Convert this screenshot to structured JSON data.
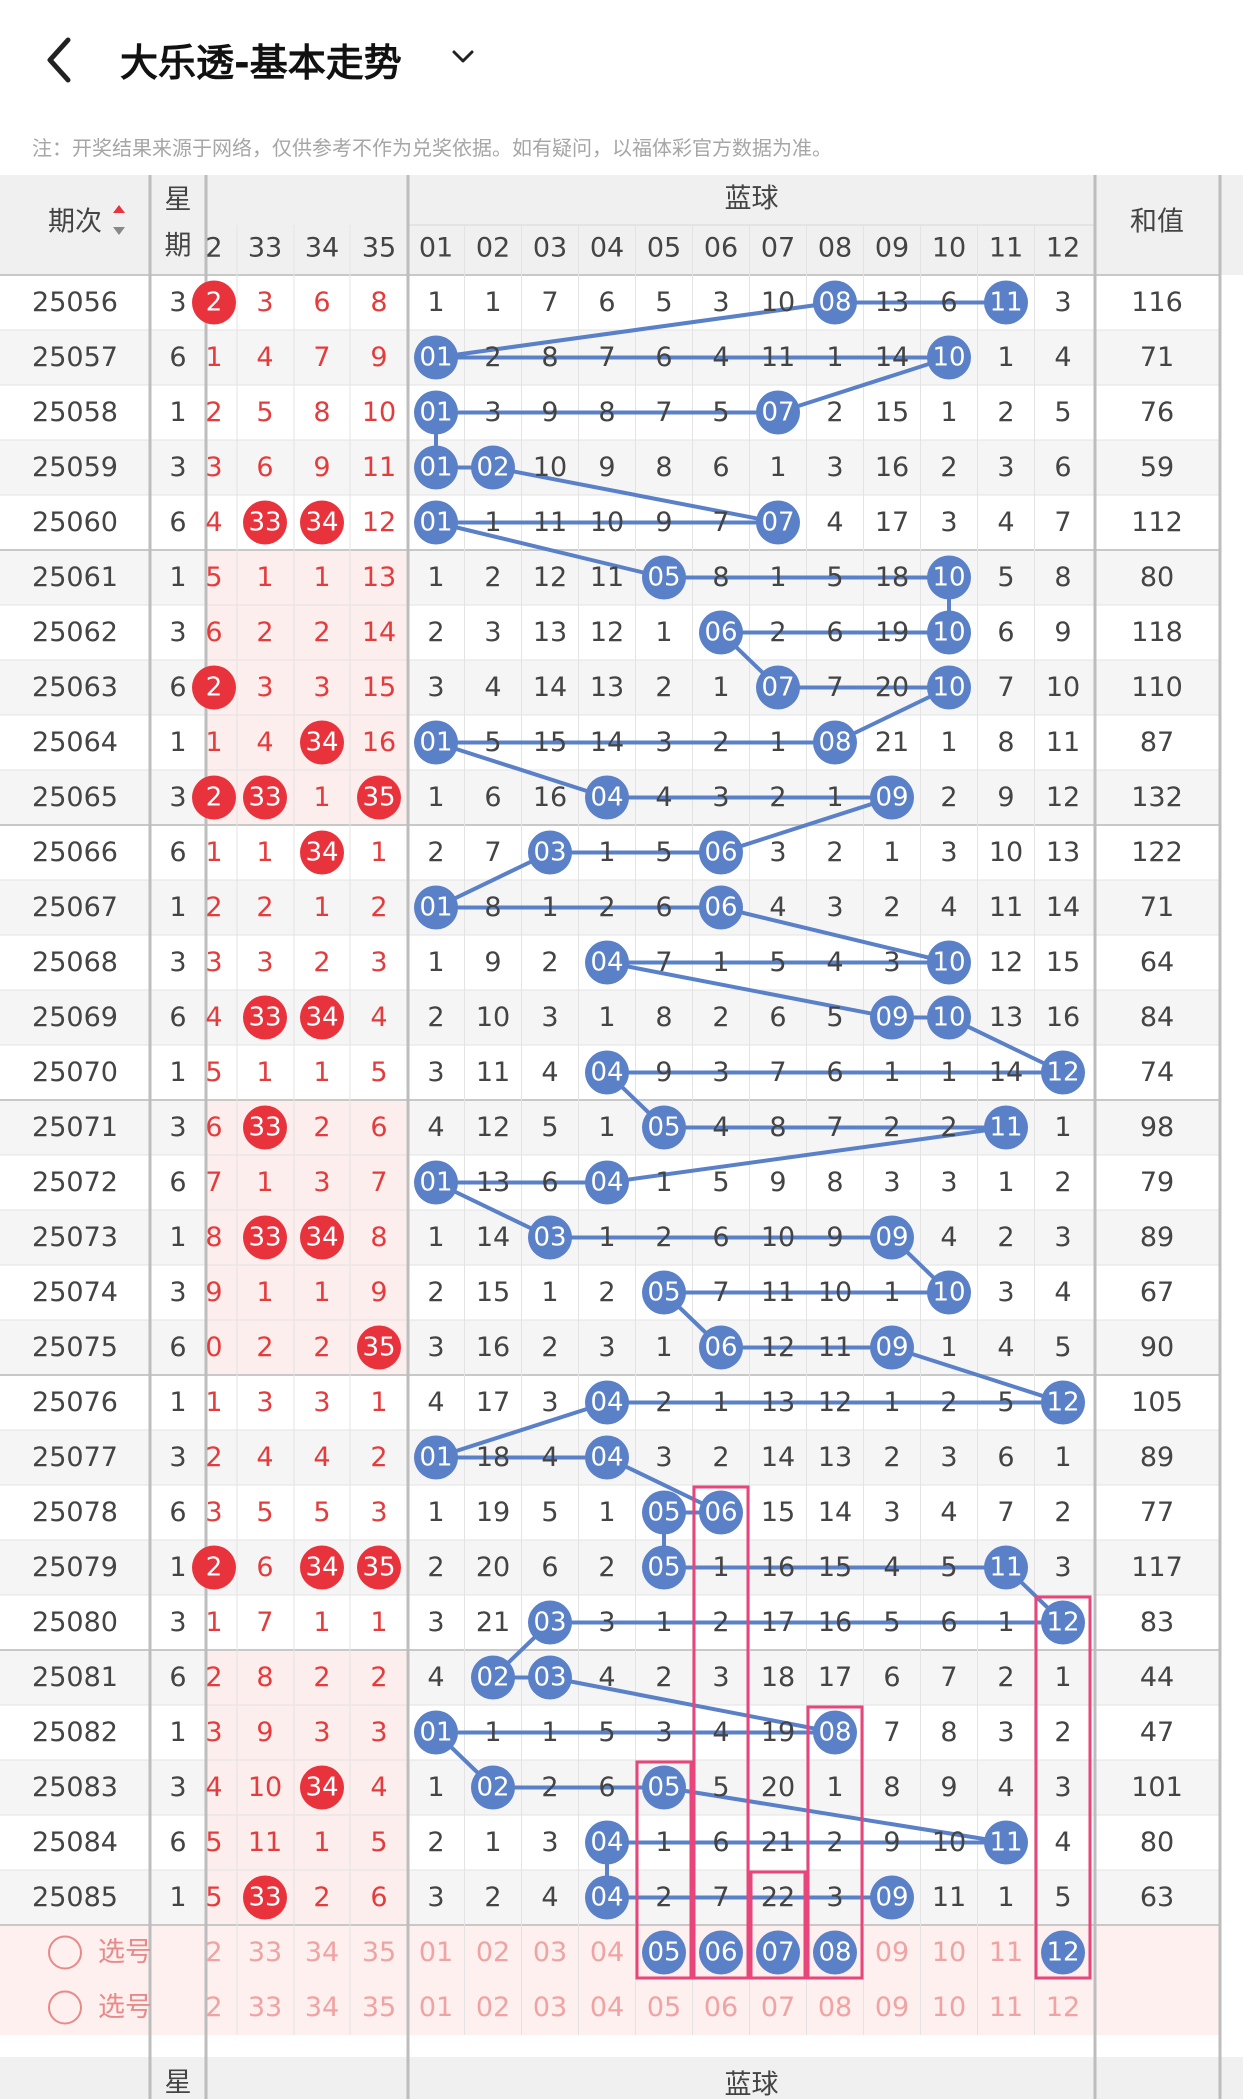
{
  "header": {
    "back_label": "<",
    "title": "大乐透-基本走势",
    "dropdown": "chevron-down-icon"
  },
  "notice": "注：开奖结果来源于网络，仅供参考不作为兑奖依据。如有疑问，以福体彩官方数据为准。",
  "columns": {
    "period": "期次",
    "weekday_top": "星",
    "weekday_bottom": "期",
    "blue_group": "蓝球",
    "sum": "和值",
    "front_headers": [
      "2",
      "33",
      "34",
      "35"
    ],
    "blue_headers": [
      "01",
      "02",
      "03",
      "04",
      "05",
      "06",
      "07",
      "08",
      "09",
      "10",
      "11",
      "12"
    ]
  },
  "colors": {
    "red_ball": "#e8333c",
    "red_text": "#e43c3c",
    "blue_ball": "#5a80c8",
    "blue_line": "#5a80c8",
    "highlight_box": "#e8457a",
    "row_alt": "#f5f5f5",
    "header_bg": "#f0f0f0",
    "pick_bg": "#fdf0ee"
  },
  "rows": [
    {
      "period": "25056",
      "wd": "3",
      "front": [
        {
          "v": "2",
          "hit": true
        },
        {
          "v": "3",
          "hit": false
        },
        {
          "v": "6",
          "hit": false
        },
        {
          "v": "8",
          "hit": false
        }
      ],
      "blue": [
        "1",
        "1",
        "7",
        "6",
        "5",
        "3",
        "10",
        "08",
        "13",
        "6",
        "11",
        "3"
      ],
      "hits": [
        8,
        11
      ],
      "sum": "116"
    },
    {
      "period": "25057",
      "wd": "6",
      "front": [
        {
          "v": "1",
          "hit": false
        },
        {
          "v": "4",
          "hit": false
        },
        {
          "v": "7",
          "hit": false
        },
        {
          "v": "9",
          "hit": false
        }
      ],
      "blue": [
        "01",
        "2",
        "8",
        "7",
        "6",
        "4",
        "11",
        "1",
        "14",
        "10",
        "1",
        "4"
      ],
      "hits": [
        1,
        10
      ],
      "sum": "71"
    },
    {
      "period": "25058",
      "wd": "1",
      "front": [
        {
          "v": "2",
          "hit": false
        },
        {
          "v": "5",
          "hit": false
        },
        {
          "v": "8",
          "hit": false
        },
        {
          "v": "10",
          "hit": false
        }
      ],
      "blue": [
        "01",
        "3",
        "9",
        "8",
        "7",
        "5",
        "07",
        "2",
        "15",
        "1",
        "2",
        "5"
      ],
      "hits": [
        1,
        7
      ],
      "sum": "76"
    },
    {
      "period": "25059",
      "wd": "3",
      "front": [
        {
          "v": "3",
          "hit": false
        },
        {
          "v": "6",
          "hit": false
        },
        {
          "v": "9",
          "hit": false
        },
        {
          "v": "11",
          "hit": false
        }
      ],
      "blue": [
        "01",
        "02",
        "10",
        "9",
        "8",
        "6",
        "1",
        "3",
        "16",
        "2",
        "3",
        "6"
      ],
      "hits": [
        1,
        2
      ],
      "sum": "59"
    },
    {
      "period": "25060",
      "wd": "6",
      "front": [
        {
          "v": "4",
          "hit": false
        },
        {
          "v": "33",
          "hit": true
        },
        {
          "v": "34",
          "hit": true
        },
        {
          "v": "12",
          "hit": false
        }
      ],
      "blue": [
        "01",
        "1",
        "11",
        "10",
        "9",
        "7",
        "07",
        "4",
        "17",
        "3",
        "4",
        "7"
      ],
      "hits": [
        1,
        7
      ],
      "sum": "112"
    },
    {
      "period": "25061",
      "wd": "1",
      "front": [
        {
          "v": "5",
          "hit": false
        },
        {
          "v": "1",
          "hit": false
        },
        {
          "v": "1",
          "hit": false
        },
        {
          "v": "13",
          "hit": false
        }
      ],
      "blue": [
        "1",
        "2",
        "12",
        "11",
        "05",
        "8",
        "1",
        "5",
        "18",
        "10",
        "5",
        "8"
      ],
      "hits": [
        5,
        10
      ],
      "sum": "80"
    },
    {
      "period": "25062",
      "wd": "3",
      "front": [
        {
          "v": "6",
          "hit": false
        },
        {
          "v": "2",
          "hit": false
        },
        {
          "v": "2",
          "hit": false
        },
        {
          "v": "14",
          "hit": false
        }
      ],
      "blue": [
        "2",
        "3",
        "13",
        "12",
        "1",
        "06",
        "2",
        "6",
        "19",
        "10",
        "6",
        "9"
      ],
      "hits": [
        6,
        10
      ],
      "sum": "118"
    },
    {
      "period": "25063",
      "wd": "6",
      "front": [
        {
          "v": "2",
          "hit": true
        },
        {
          "v": "3",
          "hit": false
        },
        {
          "v": "3",
          "hit": false
        },
        {
          "v": "15",
          "hit": false
        }
      ],
      "blue": [
        "3",
        "4",
        "14",
        "13",
        "2",
        "1",
        "07",
        "7",
        "20",
        "10",
        "7",
        "10"
      ],
      "hits": [
        7,
        10
      ],
      "sum": "110"
    },
    {
      "period": "25064",
      "wd": "1",
      "front": [
        {
          "v": "1",
          "hit": false
        },
        {
          "v": "4",
          "hit": false
        },
        {
          "v": "34",
          "hit": true
        },
        {
          "v": "16",
          "hit": false
        }
      ],
      "blue": [
        "01",
        "5",
        "15",
        "14",
        "3",
        "2",
        "1",
        "08",
        "21",
        "1",
        "8",
        "11"
      ],
      "hits": [
        1,
        8
      ],
      "sum": "87"
    },
    {
      "period": "25065",
      "wd": "3",
      "front": [
        {
          "v": "2",
          "hit": true
        },
        {
          "v": "33",
          "hit": true
        },
        {
          "v": "1",
          "hit": false
        },
        {
          "v": "35",
          "hit": true
        }
      ],
      "blue": [
        "1",
        "6",
        "16",
        "04",
        "4",
        "3",
        "2",
        "1",
        "09",
        "2",
        "9",
        "12"
      ],
      "hits": [
        4,
        9
      ],
      "sum": "132"
    },
    {
      "period": "25066",
      "wd": "6",
      "front": [
        {
          "v": "1",
          "hit": false
        },
        {
          "v": "1",
          "hit": false
        },
        {
          "v": "34",
          "hit": true
        },
        {
          "v": "1",
          "hit": false
        }
      ],
      "blue": [
        "2",
        "7",
        "03",
        "1",
        "5",
        "06",
        "3",
        "2",
        "1",
        "3",
        "10",
        "13"
      ],
      "hits": [
        3,
        6
      ],
      "sum": "122"
    },
    {
      "period": "25067",
      "wd": "1",
      "front": [
        {
          "v": "2",
          "hit": false
        },
        {
          "v": "2",
          "hit": false
        },
        {
          "v": "1",
          "hit": false
        },
        {
          "v": "2",
          "hit": false
        }
      ],
      "blue": [
        "01",
        "8",
        "1",
        "2",
        "6",
        "06",
        "4",
        "3",
        "2",
        "4",
        "11",
        "14"
      ],
      "hits": [
        1,
        6
      ],
      "sum": "71"
    },
    {
      "period": "25068",
      "wd": "3",
      "front": [
        {
          "v": "3",
          "hit": false
        },
        {
          "v": "3",
          "hit": false
        },
        {
          "v": "2",
          "hit": false
        },
        {
          "v": "3",
          "hit": false
        }
      ],
      "blue": [
        "1",
        "9",
        "2",
        "04",
        "7",
        "1",
        "5",
        "4",
        "3",
        "10",
        "12",
        "15"
      ],
      "hits": [
        4,
        10
      ],
      "sum": "64"
    },
    {
      "period": "25069",
      "wd": "6",
      "front": [
        {
          "v": "4",
          "hit": false
        },
        {
          "v": "33",
          "hit": true
        },
        {
          "v": "34",
          "hit": true
        },
        {
          "v": "4",
          "hit": false
        }
      ],
      "blue": [
        "2",
        "10",
        "3",
        "1",
        "8",
        "2",
        "6",
        "5",
        "09",
        "10",
        "13",
        "16"
      ],
      "hits": [
        9,
        10
      ],
      "sum": "84"
    },
    {
      "period": "25070",
      "wd": "1",
      "front": [
        {
          "v": "5",
          "hit": false
        },
        {
          "v": "1",
          "hit": false
        },
        {
          "v": "1",
          "hit": false
        },
        {
          "v": "5",
          "hit": false
        }
      ],
      "blue": [
        "3",
        "11",
        "4",
        "04",
        "9",
        "3",
        "7",
        "6",
        "1",
        "1",
        "14",
        "12"
      ],
      "hits": [
        4,
        12
      ],
      "sum": "74"
    },
    {
      "period": "25071",
      "wd": "3",
      "front": [
        {
          "v": "6",
          "hit": false
        },
        {
          "v": "33",
          "hit": true
        },
        {
          "v": "2",
          "hit": false
        },
        {
          "v": "6",
          "hit": false
        }
      ],
      "blue": [
        "4",
        "12",
        "5",
        "1",
        "05",
        "4",
        "8",
        "7",
        "2",
        "2",
        "11",
        "1"
      ],
      "hits": [
        5,
        11
      ],
      "sum": "98"
    },
    {
      "period": "25072",
      "wd": "6",
      "front": [
        {
          "v": "7",
          "hit": false
        },
        {
          "v": "1",
          "hit": false
        },
        {
          "v": "3",
          "hit": false
        },
        {
          "v": "7",
          "hit": false
        }
      ],
      "blue": [
        "01",
        "13",
        "6",
        "04",
        "1",
        "5",
        "9",
        "8",
        "3",
        "3",
        "1",
        "2"
      ],
      "hits": [
        1,
        4
      ],
      "sum": "79"
    },
    {
      "period": "25073",
      "wd": "1",
      "front": [
        {
          "v": "8",
          "hit": false
        },
        {
          "v": "33",
          "hit": true
        },
        {
          "v": "34",
          "hit": true
        },
        {
          "v": "8",
          "hit": false
        }
      ],
      "blue": [
        "1",
        "14",
        "03",
        "1",
        "2",
        "6",
        "10",
        "9",
        "09",
        "4",
        "2",
        "3"
      ],
      "hits": [
        3,
        9
      ],
      "sum": "89"
    },
    {
      "period": "25074",
      "wd": "3",
      "front": [
        {
          "v": "9",
          "hit": false
        },
        {
          "v": "1",
          "hit": false
        },
        {
          "v": "1",
          "hit": false
        },
        {
          "v": "9",
          "hit": false
        }
      ],
      "blue": [
        "2",
        "15",
        "1",
        "2",
        "05",
        "7",
        "11",
        "10",
        "1",
        "10",
        "3",
        "4"
      ],
      "hits": [
        5,
        10
      ],
      "sum": "67"
    },
    {
      "period": "25075",
      "wd": "6",
      "front": [
        {
          "v": "0",
          "hit": false
        },
        {
          "v": "2",
          "hit": false
        },
        {
          "v": "2",
          "hit": false
        },
        {
          "v": "35",
          "hit": true
        }
      ],
      "blue": [
        "3",
        "16",
        "2",
        "3",
        "1",
        "06",
        "12",
        "11",
        "09",
        "1",
        "4",
        "5"
      ],
      "hits": [
        6,
        9
      ],
      "sum": "90"
    },
    {
      "period": "25076",
      "wd": "1",
      "front": [
        {
          "v": "1",
          "hit": false
        },
        {
          "v": "3",
          "hit": false
        },
        {
          "v": "3",
          "hit": false
        },
        {
          "v": "1",
          "hit": false
        }
      ],
      "blue": [
        "4",
        "17",
        "3",
        "04",
        "2",
        "1",
        "13",
        "12",
        "1",
        "2",
        "5",
        "12"
      ],
      "hits": [
        4,
        12
      ],
      "sum": "105"
    },
    {
      "period": "25077",
      "wd": "3",
      "front": [
        {
          "v": "2",
          "hit": false
        },
        {
          "v": "4",
          "hit": false
        },
        {
          "v": "4",
          "hit": false
        },
        {
          "v": "2",
          "hit": false
        }
      ],
      "blue": [
        "01",
        "18",
        "4",
        "04",
        "3",
        "2",
        "14",
        "13",
        "2",
        "3",
        "6",
        "1"
      ],
      "hits": [
        1,
        4
      ],
      "sum": "89"
    },
    {
      "period": "25078",
      "wd": "6",
      "front": [
        {
          "v": "3",
          "hit": false
        },
        {
          "v": "5",
          "hit": false
        },
        {
          "v": "5",
          "hit": false
        },
        {
          "v": "3",
          "hit": false
        }
      ],
      "blue": [
        "1",
        "19",
        "5",
        "1",
        "05",
        "06",
        "15",
        "14",
        "3",
        "4",
        "7",
        "2"
      ],
      "hits": [
        5,
        6
      ],
      "sum": "77"
    },
    {
      "period": "25079",
      "wd": "1",
      "front": [
        {
          "v": "2",
          "hit": true
        },
        {
          "v": "6",
          "hit": false
        },
        {
          "v": "34",
          "hit": true
        },
        {
          "v": "35",
          "hit": true
        }
      ],
      "blue": [
        "2",
        "20",
        "6",
        "2",
        "05",
        "1",
        "16",
        "15",
        "4",
        "5",
        "11",
        "3"
      ],
      "hits": [
        5,
        11
      ],
      "sum": "117"
    },
    {
      "period": "25080",
      "wd": "3",
      "front": [
        {
          "v": "1",
          "hit": false
        },
        {
          "v": "7",
          "hit": false
        },
        {
          "v": "1",
          "hit": false
        },
        {
          "v": "1",
          "hit": false
        }
      ],
      "blue": [
        "3",
        "21",
        "03",
        "3",
        "1",
        "2",
        "17",
        "16",
        "5",
        "6",
        "1",
        "12"
      ],
      "hits": [
        3,
        12
      ],
      "sum": "83"
    },
    {
      "period": "25081",
      "wd": "6",
      "front": [
        {
          "v": "2",
          "hit": false
        },
        {
          "v": "8",
          "hit": false
        },
        {
          "v": "2",
          "hit": false
        },
        {
          "v": "2",
          "hit": false
        }
      ],
      "blue": [
        "4",
        "02",
        "03",
        "4",
        "2",
        "3",
        "18",
        "17",
        "6",
        "7",
        "2",
        "1"
      ],
      "hits": [
        2,
        3
      ],
      "sum": "44"
    },
    {
      "period": "25082",
      "wd": "1",
      "front": [
        {
          "v": "3",
          "hit": false
        },
        {
          "v": "9",
          "hit": false
        },
        {
          "v": "3",
          "hit": false
        },
        {
          "v": "3",
          "hit": false
        }
      ],
      "blue": [
        "01",
        "1",
        "1",
        "5",
        "3",
        "4",
        "19",
        "08",
        "7",
        "8",
        "3",
        "2"
      ],
      "hits": [
        1,
        8
      ],
      "sum": "47"
    },
    {
      "period": "25083",
      "wd": "3",
      "front": [
        {
          "v": "4",
          "hit": false
        },
        {
          "v": "10",
          "hit": false
        },
        {
          "v": "34",
          "hit": true
        },
        {
          "v": "4",
          "hit": false
        }
      ],
      "blue": [
        "1",
        "02",
        "2",
        "6",
        "05",
        "5",
        "20",
        "1",
        "8",
        "9",
        "4",
        "3"
      ],
      "hits": [
        2,
        5
      ],
      "sum": "101"
    },
    {
      "period": "25084",
      "wd": "6",
      "front": [
        {
          "v": "5",
          "hit": false
        },
        {
          "v": "11",
          "hit": false
        },
        {
          "v": "1",
          "hit": false
        },
        {
          "v": "5",
          "hit": false
        }
      ],
      "blue": [
        "2",
        "1",
        "3",
        "04",
        "1",
        "6",
        "21",
        "2",
        "9",
        "10",
        "11",
        "4"
      ],
      "hits": [
        4,
        11
      ],
      "sum": "80"
    },
    {
      "period": "25085",
      "wd": "1",
      "front": [
        {
          "v": "5",
          "hit": false
        },
        {
          "v": "33",
          "hit": true
        },
        {
          "v": "2",
          "hit": false
        },
        {
          "v": "6",
          "hit": false
        }
      ],
      "blue": [
        "3",
        "2",
        "4",
        "04",
        "2",
        "7",
        "22",
        "3",
        "09",
        "11",
        "1",
        "5"
      ],
      "hits": [
        4,
        9
      ],
      "sum": "63"
    }
  ],
  "pick_rows": [
    {
      "label": "选号",
      "front": [
        "2",
        "33",
        "34",
        "35"
      ],
      "blue": [
        "01",
        "02",
        "03",
        "04",
        "05",
        "06",
        "07",
        "08",
        "09",
        "10",
        "11",
        "12"
      ],
      "selected": [
        5,
        6,
        7,
        8,
        12
      ]
    },
    {
      "label": "选号",
      "front": [
        "2",
        "33",
        "34",
        "35"
      ],
      "blue": [
        "01",
        "02",
        "03",
        "04",
        "05",
        "06",
        "07",
        "08",
        "09",
        "10",
        "11",
        "12"
      ],
      "selected": []
    }
  ],
  "footer": {
    "period": "-",
    "weekday_top": "星",
    "weekday_bottom": "期",
    "blue_group": "蓝球",
    "sum": "和值"
  }
}
